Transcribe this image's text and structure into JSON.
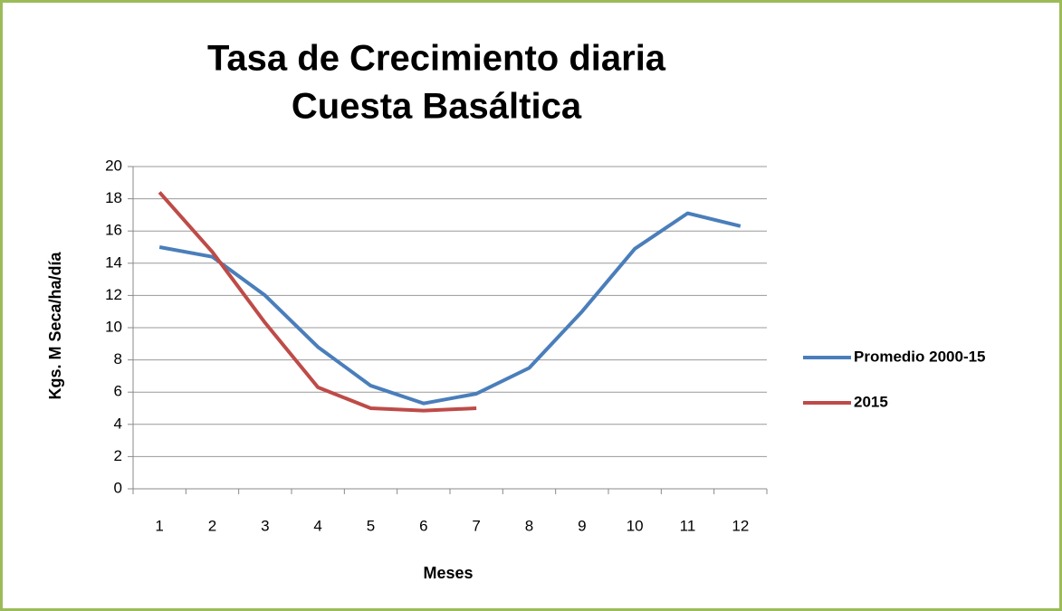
{
  "chart_data": {
    "type": "line",
    "title": [
      "Tasa de Crecimiento  diaria",
      "Cuesta Basáltica"
    ],
    "x_label": "Meses",
    "y_label": "Kgs. M Seca/ha/día",
    "categories": [
      "1",
      "2",
      "3",
      "4",
      "5",
      "6",
      "7",
      "8",
      "9",
      "10",
      "11",
      "12"
    ],
    "series": [
      {
        "name": "Promedio 2000-15",
        "color": "#4a7ebb",
        "values": [
          15.0,
          14.4,
          12.0,
          8.8,
          6.4,
          5.3,
          5.9,
          7.5,
          11.0,
          14.9,
          17.1,
          16.3
        ]
      },
      {
        "name": "2015",
        "color": "#be4b48",
        "values": [
          18.4,
          14.7,
          10.3,
          6.3,
          5.0,
          4.85,
          5.0,
          null,
          null,
          null,
          null,
          null
        ]
      }
    ],
    "ylim": [
      0,
      20
    ],
    "yticks": [
      0,
      2,
      4,
      6,
      8,
      10,
      12,
      14,
      16,
      18,
      20
    ],
    "grid": true,
    "legend": "right"
  }
}
